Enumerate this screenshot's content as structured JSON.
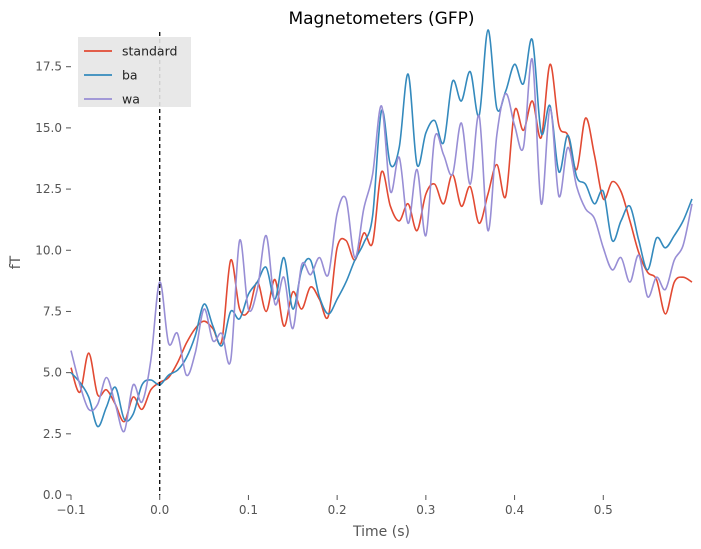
{
  "chart_data": {
    "type": "line",
    "title": "Magnetometers (GFP)",
    "xlabel": "Time (s)",
    "ylabel": "fT",
    "xlim": [
      -0.1,
      0.6
    ],
    "ylim": [
      0,
      19
    ],
    "xticks": [
      -0.1,
      0.0,
      0.1,
      0.2,
      0.3,
      0.4,
      0.5
    ],
    "xtick_labels": [
      "−0.1",
      "0.0",
      "0.1",
      "0.2",
      "0.3",
      "0.4",
      "0.5"
    ],
    "yticks": [
      0,
      2.5,
      5,
      7.5,
      10,
      12.5,
      15,
      17.5
    ],
    "ytick_labels": [
      "0.0",
      "2.5",
      "5.0",
      "7.5",
      "10.0",
      "12.5",
      "15.0",
      "17.5"
    ],
    "grid": false,
    "legend_position": "top-left",
    "event_line_x": 0.0,
    "x": [
      -0.1,
      -0.09,
      -0.08,
      -0.07,
      -0.06,
      -0.05,
      -0.04,
      -0.03,
      -0.02,
      -0.01,
      0.0,
      0.01,
      0.02,
      0.03,
      0.04,
      0.05,
      0.06,
      0.07,
      0.08,
      0.09,
      0.1,
      0.11,
      0.12,
      0.13,
      0.14,
      0.15,
      0.16,
      0.17,
      0.18,
      0.19,
      0.2,
      0.21,
      0.22,
      0.23,
      0.24,
      0.25,
      0.26,
      0.27,
      0.28,
      0.29,
      0.3,
      0.31,
      0.32,
      0.33,
      0.34,
      0.35,
      0.36,
      0.37,
      0.38,
      0.39,
      0.4,
      0.41,
      0.42,
      0.43,
      0.44,
      0.45,
      0.46,
      0.47,
      0.48,
      0.49,
      0.5,
      0.51,
      0.52,
      0.53,
      0.54,
      0.55,
      0.56,
      0.57,
      0.58,
      0.59,
      0.6
    ],
    "series": [
      {
        "name": "standard",
        "color": "#e24a33",
        "values": [
          5.2,
          4.2,
          5.8,
          4.1,
          4.3,
          3.7,
          3.0,
          4.0,
          3.5,
          4.3,
          4.6,
          4.8,
          5.4,
          6.2,
          6.8,
          7.1,
          6.8,
          6.3,
          9.6,
          7.6,
          7.5,
          8.7,
          7.5,
          8.8,
          6.9,
          8.3,
          7.6,
          8.5,
          8.0,
          7.3,
          10.1,
          10.4,
          9.6,
          10.7,
          10.3,
          13.2,
          11.8,
          11.2,
          11.9,
          10.8,
          12.3,
          12.7,
          11.9,
          13.1,
          11.8,
          12.6,
          11.1,
          12.3,
          13.5,
          12.2,
          15.7,
          14.9,
          16.1,
          14.6,
          17.6,
          15.1,
          14.7,
          13.3,
          15.4,
          13.9,
          12.1,
          12.8,
          12.4,
          11.2,
          9.9,
          9.1,
          8.8,
          7.4,
          8.7,
          8.9,
          8.7
        ]
      },
      {
        "name": "ba",
        "color": "#348abd",
        "values": [
          5.0,
          4.6,
          4.0,
          2.8,
          3.6,
          4.4,
          3.1,
          3.3,
          4.5,
          4.7,
          4.5,
          4.9,
          5.1,
          5.6,
          6.5,
          7.8,
          6.9,
          6.1,
          7.5,
          7.2,
          8.2,
          8.7,
          9.3,
          8.0,
          9.7,
          7.6,
          9.2,
          9.6,
          8.1,
          7.4,
          8.0,
          8.7,
          9.6,
          10.3,
          11.4,
          15.7,
          13.5,
          14.2,
          17.2,
          13.5,
          14.8,
          15.3,
          14.4,
          16.9,
          16.1,
          17.3,
          15.5,
          19.0,
          15.8,
          16.5,
          17.6,
          16.8,
          18.6,
          14.8,
          15.9,
          13.2,
          14.7,
          13.0,
          12.7,
          11.9,
          12.4,
          10.4,
          11.2,
          11.8,
          10.4,
          9.2,
          10.5,
          10.1,
          10.6,
          11.2,
          12.1
        ]
      },
      {
        "name": "wa",
        "color": "#988ed5",
        "values": [
          5.9,
          4.5,
          3.5,
          3.7,
          4.8,
          3.7,
          2.6,
          4.5,
          3.8,
          5.5,
          8.7,
          6.2,
          6.6,
          4.9,
          5.8,
          7.6,
          6.3,
          6.6,
          5.5,
          10.4,
          7.6,
          8.4,
          10.6,
          7.8,
          8.9,
          6.8,
          9.4,
          9.0,
          9.7,
          9.0,
          11.5,
          12.1,
          9.7,
          11.7,
          13.1,
          15.9,
          12.4,
          13.8,
          11.1,
          13.3,
          10.6,
          14.6,
          13.9,
          13.1,
          15.2,
          12.7,
          15.5,
          10.8,
          14.7,
          16.4,
          15.1,
          14.2,
          17.8,
          11.9,
          15.8,
          12.2,
          14.2,
          12.6,
          11.7,
          11.3,
          10.1,
          9.2,
          9.7,
          8.7,
          9.8,
          8.1,
          8.9,
          8.4,
          9.6,
          10.2,
          11.9
        ]
      }
    ]
  }
}
